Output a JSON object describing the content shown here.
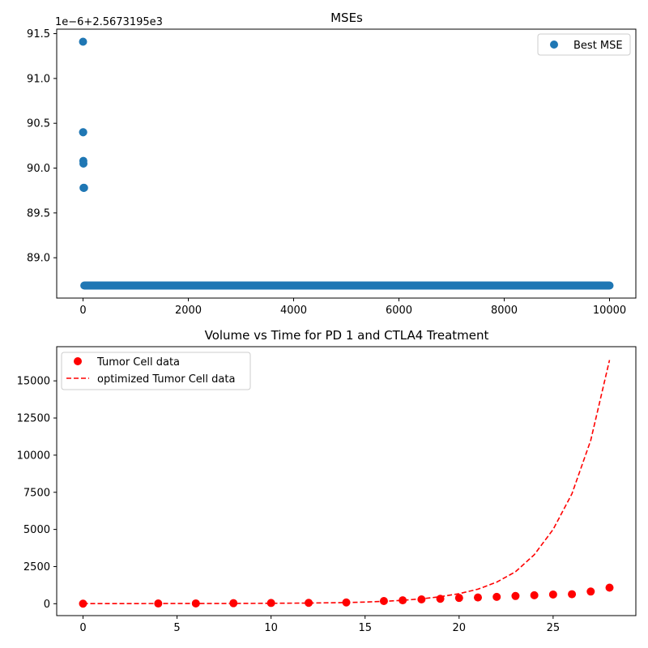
{
  "chart_data": [
    {
      "type": "scatter",
      "title": "MSEs",
      "xlabel": "",
      "ylabel": "",
      "offset_label": "1e−6+2.5673195e3",
      "xlim": [
        -500,
        10500
      ],
      "ylim": [
        88.55,
        91.55
      ],
      "xticks": [
        0,
        2000,
        4000,
        6000,
        8000,
        10000
      ],
      "xtick_labels": [
        "0",
        "2000",
        "4000",
        "6000",
        "8000",
        "10000"
      ],
      "yticks": [
        89.0,
        89.5,
        90.0,
        90.5,
        91.0,
        91.5
      ],
      "ytick_labels": [
        "89.0",
        "89.5",
        "90.0",
        "90.5",
        "91.0",
        "91.5"
      ],
      "legend": {
        "position": "top-right",
        "entries": [
          "Best MSE"
        ]
      },
      "grid": false,
      "series": [
        {
          "name": "Best MSE",
          "color": "#1f77b4",
          "marker": "circle",
          "points": [
            [
              0,
              91.41
            ],
            [
              1,
              90.4
            ],
            [
              3,
              90.4
            ],
            [
              6,
              90.08
            ],
            [
              8,
              90.05
            ],
            [
              10,
              89.78
            ],
            [
              15,
              89.78
            ],
            [
              20,
              89.78
            ]
          ],
          "constant_segment": {
            "x_start": 25,
            "x_end": 10000,
            "y": 88.69
          }
        }
      ]
    },
    {
      "type": "line",
      "title": "Volume vs Time for PD 1 and CTLA4 Treatment",
      "xlabel": "",
      "ylabel": "",
      "xlim": [
        -1.4,
        29.4
      ],
      "ylim": [
        -800,
        17300
      ],
      "xticks": [
        0,
        5,
        10,
        15,
        20,
        25
      ],
      "xtick_labels": [
        "0",
        "5",
        "10",
        "15",
        "20",
        "25"
      ],
      "yticks": [
        0,
        2500,
        5000,
        7500,
        10000,
        12500,
        15000
      ],
      "ytick_labels": [
        "0",
        "2500",
        "5000",
        "7500",
        "10000",
        "12500",
        "15000"
      ],
      "legend": {
        "position": "top-left",
        "entries": [
          "Tumor Cell data",
          "optimized Tumor Cell data"
        ]
      },
      "grid": false,
      "series": [
        {
          "name": "Tumor Cell data",
          "style": "markers",
          "color": "#ff0000",
          "x": [
            0,
            4,
            6,
            8,
            10,
            12,
            14,
            16,
            17,
            18,
            19,
            20,
            21,
            22,
            23,
            24,
            25,
            26,
            27,
            28
          ],
          "y": [
            5,
            15,
            20,
            35,
            50,
            60,
            85,
            180,
            230,
            290,
            330,
            390,
            420,
            460,
            520,
            570,
            620,
            640,
            820,
            1080
          ]
        },
        {
          "name": "optimized Tumor Cell data",
          "style": "dashed",
          "color": "#ff0000",
          "x": [
            0,
            2,
            4,
            6,
            8,
            10,
            12,
            14,
            15,
            16,
            17,
            18,
            19,
            20,
            21,
            22,
            23,
            24,
            25,
            26,
            27,
            28
          ],
          "y": [
            5,
            7,
            10,
            13,
            18,
            28,
            45,
            80,
            110,
            160,
            230,
            330,
            470,
            680,
            980,
            1450,
            2150,
            3300,
            5000,
            7400,
            11000,
            16400
          ]
        }
      ]
    }
  ]
}
